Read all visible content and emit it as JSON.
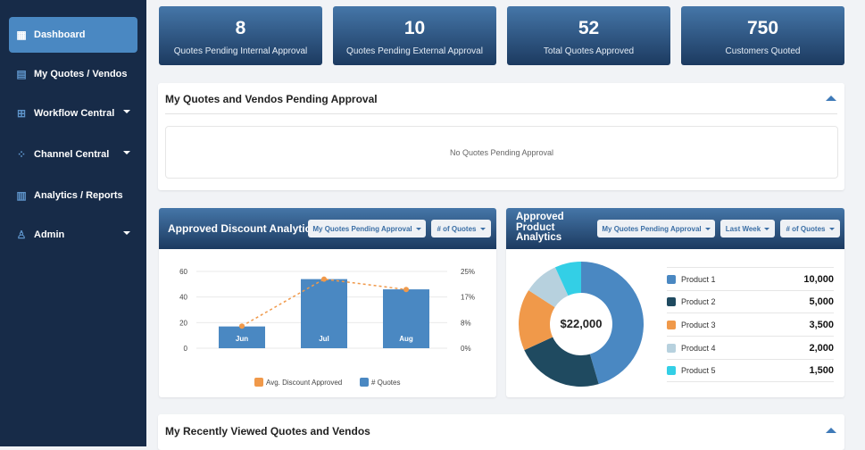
{
  "sidebar": {
    "items": [
      {
        "label": "Dashboard",
        "icon": "grid-icon",
        "active": true
      },
      {
        "label": "My Quotes / Vendos",
        "icon": "document-icon"
      },
      {
        "label": "Workflow Central",
        "icon": "workflow-icon",
        "dropdown": true
      },
      {
        "label": "Channel Central",
        "icon": "network-icon",
        "dropdown": true
      },
      {
        "label": "Analytics / Reports",
        "icon": "analytics-icon"
      },
      {
        "label": "Admin",
        "icon": "user-gear-icon",
        "dropdown": true
      }
    ]
  },
  "stats": [
    {
      "value": "8",
      "label": "Quotes Pending Internal Approval"
    },
    {
      "value": "10",
      "label": "Quotes Pending External Approval"
    },
    {
      "value": "52",
      "label": "Total Quotes Approved"
    },
    {
      "value": "750",
      "label": "Customers Quoted"
    }
  ],
  "pending": {
    "title": "My Quotes and Vendos Pending Approval",
    "empty": "No Quotes Pending Approval"
  },
  "discount": {
    "title": "Approved Discount Analytics",
    "filters": [
      "My Quotes Pending Approval",
      "# of Quotes"
    ]
  },
  "product": {
    "title": "Approved Product Analytics",
    "filters": [
      "My Quotes Pending Approval",
      "Last Week",
      "# of Quotes"
    ],
    "center": "$22,000"
  },
  "recent": {
    "title": "My Recently Viewed Quotes and Vendos"
  },
  "colors": {
    "sidebar": "#172b48",
    "accent": "#4a88c2",
    "bar": "#4a88c2",
    "line": "#f0994a"
  },
  "chart_data": [
    {
      "type": "bar",
      "categories": [
        "Jun",
        "Jul",
        "Aug"
      ],
      "series": [
        {
          "name": "# Quotes",
          "type": "bar",
          "axis": "left",
          "values": [
            17,
            54,
            46
          ],
          "color": "#4a88c2"
        },
        {
          "name": "Avg. Discount Approved",
          "type": "line",
          "axis": "right",
          "values": [
            7.2,
            22.5,
            19.1
          ],
          "color": "#f0994a"
        }
      ],
      "left_ticks": [
        "0",
        "20",
        "40",
        "60"
      ],
      "right_ticks": [
        "0%",
        "8%",
        "17%",
        "25%"
      ],
      "ylim": [
        0,
        60
      ],
      "y2lim": [
        0,
        25
      ],
      "grid": true,
      "legend": "bottom"
    },
    {
      "type": "pie",
      "donut": true,
      "labels": [
        "Product 1",
        "Product 2",
        "Product 3",
        "Product 4",
        "Product 5"
      ],
      "values": [
        10000,
        5000,
        3500,
        2000,
        1500
      ],
      "display": [
        "10,000",
        "5,000",
        "3,500",
        "2,000",
        "1,500"
      ],
      "colors": [
        "#4a88c2",
        "#1f4a60",
        "#f0994a",
        "#b7d1de",
        "#33cfe6"
      ],
      "legend": "right"
    }
  ]
}
